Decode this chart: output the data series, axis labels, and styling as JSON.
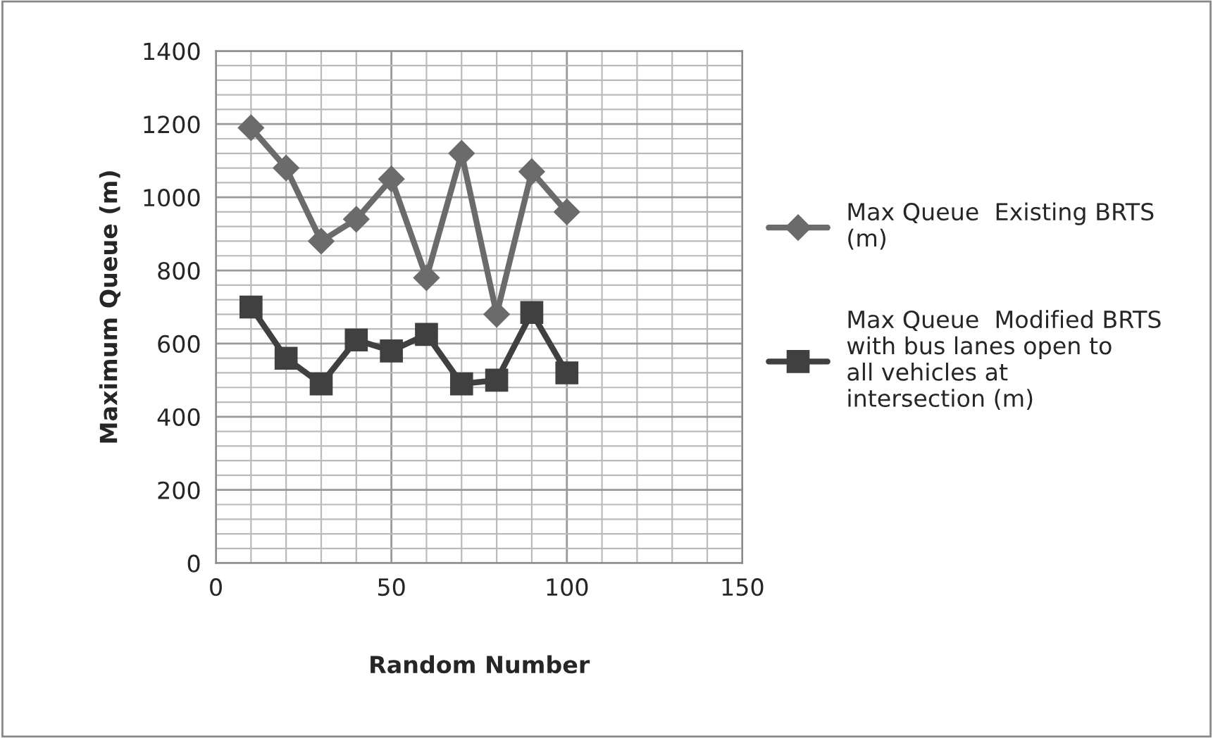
{
  "chart_data": {
    "type": "line",
    "xlabel": "Random Number",
    "ylabel": "Maximum Queue (m)",
    "x": [
      10,
      20,
      30,
      40,
      50,
      60,
      70,
      80,
      90,
      100
    ],
    "series": [
      {
        "name": "Max Queue  Existing BRTS (m)",
        "color": "#6b6b6b",
        "marker": "diamond",
        "values": [
          1190,
          1080,
          880,
          940,
          1050,
          780,
          1120,
          680,
          1070,
          960
        ]
      },
      {
        "name": "Max Queue  Modified BRTS with bus lanes open to all vehicles at intersection (m)",
        "color": "#404040",
        "marker": "square",
        "values": [
          700,
          560,
          490,
          610,
          580,
          625,
          490,
          500,
          685,
          520
        ]
      }
    ],
    "xlim": [
      0,
      150
    ],
    "xticks": [
      0,
      50,
      100,
      150
    ],
    "ylim": [
      0,
      1400
    ],
    "yticks": [
      0,
      200,
      400,
      600,
      800,
      1000,
      1200,
      1400
    ],
    "grid": true,
    "legend": "right"
  }
}
